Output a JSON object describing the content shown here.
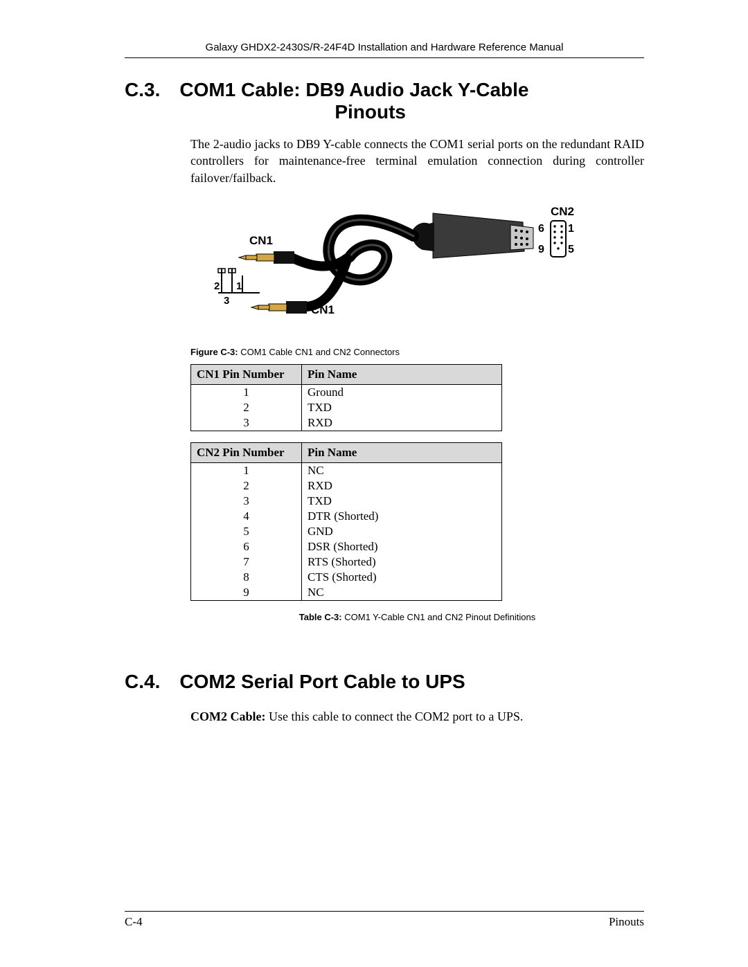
{
  "header": "Galaxy GHDX2-2430S/R-24F4D Installation and Hardware Reference Manual",
  "section_c3": {
    "number": "C.3.",
    "title_l1": "COM1 Cable: DB9 Audio Jack Y-Cable",
    "title_l2": "Pinouts",
    "paragraph": "The 2-audio jacks to DB9 Y-cable connects the COM1 serial ports on the redundant RAID controllers for maintenance-free terminal emulation connection during controller failover/failback."
  },
  "figure": {
    "cn1_label": "CN1",
    "cn1_label_2": "CN1",
    "cn2_label": "CN2",
    "jack_pins": {
      "p1": "1",
      "p2": "2",
      "p3": "3"
    },
    "db9_pins": {
      "p1": "1",
      "p5": "5",
      "p6": "6",
      "p9": "9"
    },
    "colors": {
      "black": "#000000",
      "white": "#ffffff",
      "gold": "#d4a645",
      "gray": "#9e9e9e"
    }
  },
  "figure_caption": {
    "bold": "Figure C-3:",
    "rest": " COM1 Cable CN1 and CN2 Connectors"
  },
  "table_cn1": {
    "headers": [
      "CN1 Pin Number",
      "Pin Name"
    ],
    "rows": [
      [
        "1",
        "Ground"
      ],
      [
        "2",
        "TXD"
      ],
      [
        "3",
        "RXD"
      ]
    ]
  },
  "table_cn2": {
    "headers": [
      "CN2 Pin Number",
      "Pin Name"
    ],
    "rows": [
      [
        "1",
        "NC"
      ],
      [
        "2",
        "RXD"
      ],
      [
        "3",
        "TXD"
      ],
      [
        "4",
        "DTR (Shorted)"
      ],
      [
        "5",
        "GND"
      ],
      [
        "6",
        "DSR (Shorted)"
      ],
      [
        "7",
        "RTS (Shorted)"
      ],
      [
        "8",
        "CTS (Shorted)"
      ],
      [
        "9",
        "NC"
      ]
    ]
  },
  "table_caption": {
    "bold": "Table C-3:",
    "rest": " COM1 Y-Cable CN1 and CN2 Pinout Definitions"
  },
  "section_c4": {
    "number": "C.4.",
    "title": "COM2 Serial Port Cable to UPS",
    "bold": "COM2 Cable:",
    "rest": " Use this cable to connect the COM2 port to a UPS."
  },
  "footer": {
    "left": "C-4",
    "right": "Pinouts"
  }
}
